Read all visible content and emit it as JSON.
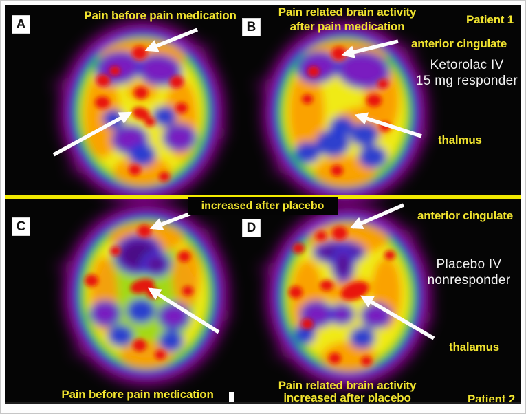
{
  "figure": {
    "panel_a": {
      "letter": "A",
      "title": "Pain before pain medication"
    },
    "panel_b": {
      "letter": "B",
      "title_line1": "Pain related brain activity",
      "title_line2": "after pain medication",
      "anterior_label": "anterior cingulate",
      "thalamus_label": "thalmus",
      "treatment_line1": "Ketorolac IV",
      "treatment_line2": "15 mg responder",
      "patient_label": "Patient 1"
    },
    "panel_c": {
      "letter": "C",
      "top_label": "increased after placebo",
      "caption": "Pain before pain medication"
    },
    "panel_d": {
      "letter": "D",
      "anterior_label": "anterior cingulate",
      "thalamus_label": "thalamus",
      "treatment_line1": "Placebo IV",
      "treatment_line2": "nonresponder",
      "caption_line1": "Pain related brain activity",
      "caption_line2": "increased after placebo",
      "patient_label": "Patient 2"
    }
  },
  "colors": {
    "label_yellow": "#f1e42f",
    "divider_yellow": "#f2ea00",
    "text_white": "#f3f3f3",
    "arrow_white": "#fcfcfc",
    "background_black": "#050505",
    "scan_magenta": "#b511bb",
    "scan_blue": "#2438d8",
    "scan_green": "#3fc21e",
    "scan_yellow": "#f0ea12",
    "scan_orange": "#fb9a05",
    "scan_red": "#e81111",
    "scan_purple": "#7a1cc0"
  }
}
